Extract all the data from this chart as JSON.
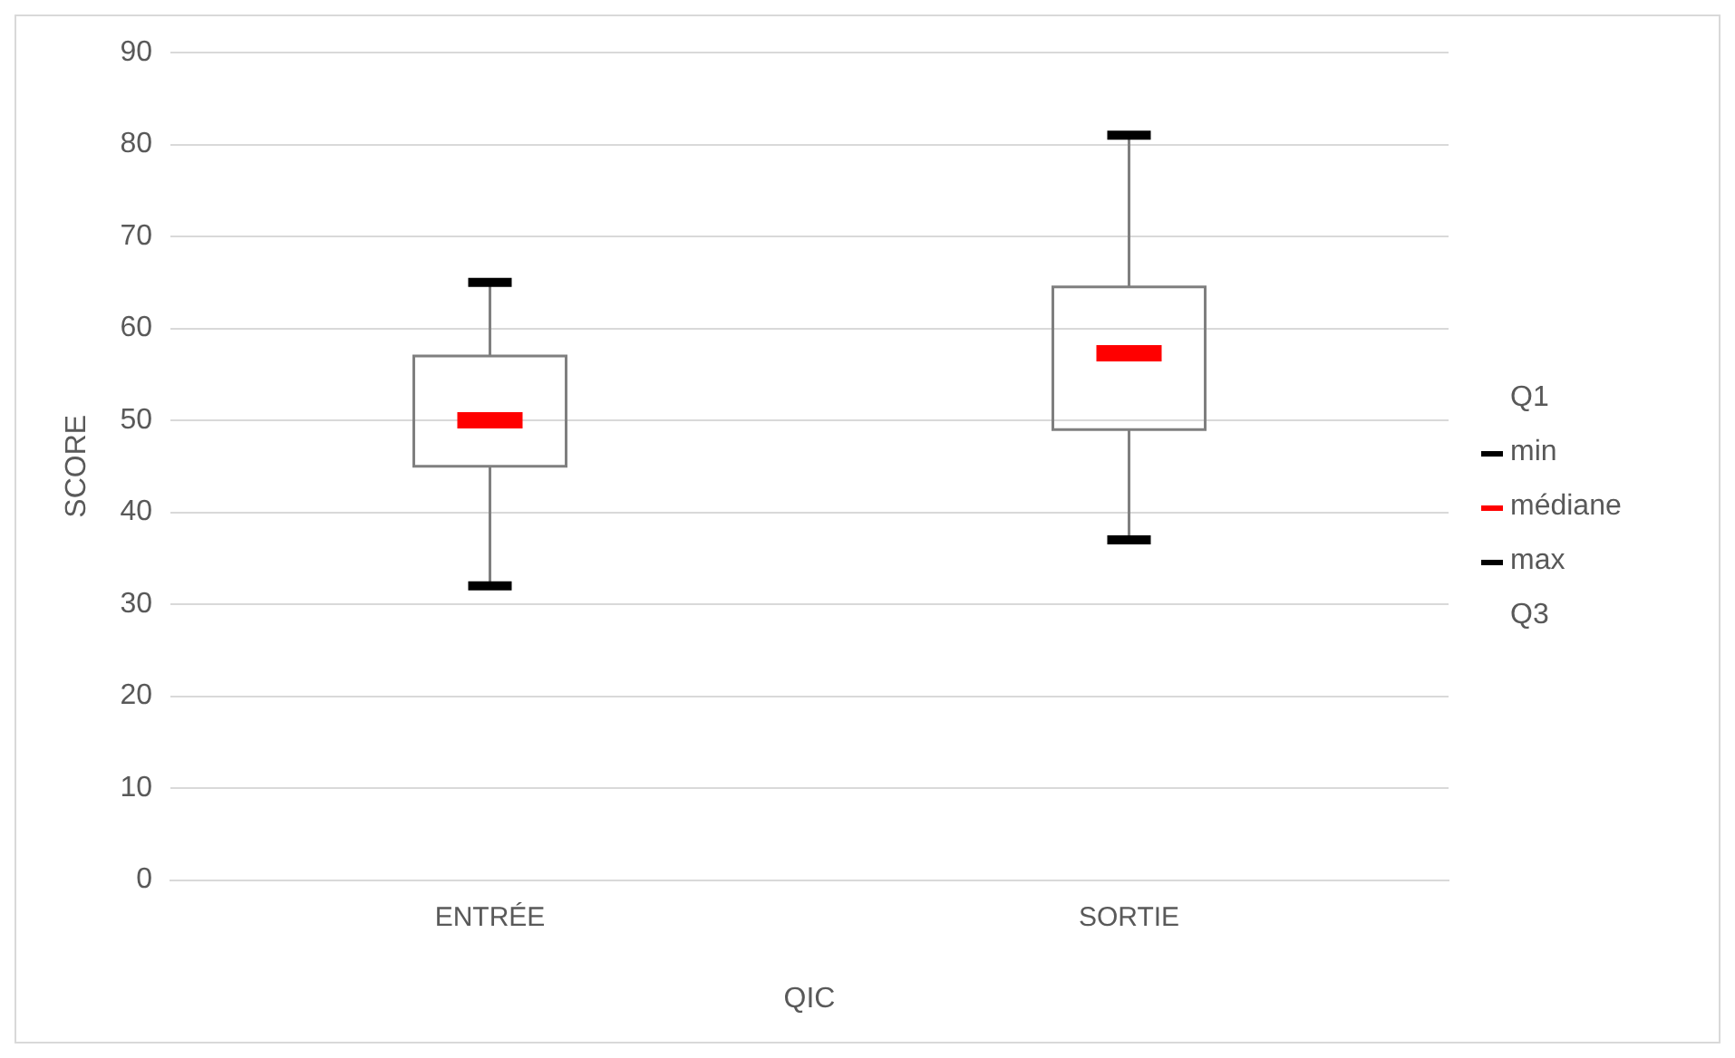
{
  "chart_data": {
    "type": "box",
    "xlabel": "QIC",
    "ylabel": "SCORE",
    "categories": [
      "ENTRÉE",
      "SORTIE"
    ],
    "boxes": [
      {
        "low": 32,
        "q1": 45,
        "median": 50,
        "q3": 57,
        "high": 65
      },
      {
        "low": 37,
        "q1": 49,
        "median": 57.3,
        "q3": 64.5,
        "high": 81
      }
    ],
    "annotations": [
      "Q1",
      "min",
      "médiane",
      "max",
      "Q3"
    ],
    "ylim": [
      0,
      90
    ],
    "yticks": [
      0,
      10,
      20,
      30,
      40,
      50,
      60,
      70,
      80,
      90
    ],
    "grid": "y"
  }
}
